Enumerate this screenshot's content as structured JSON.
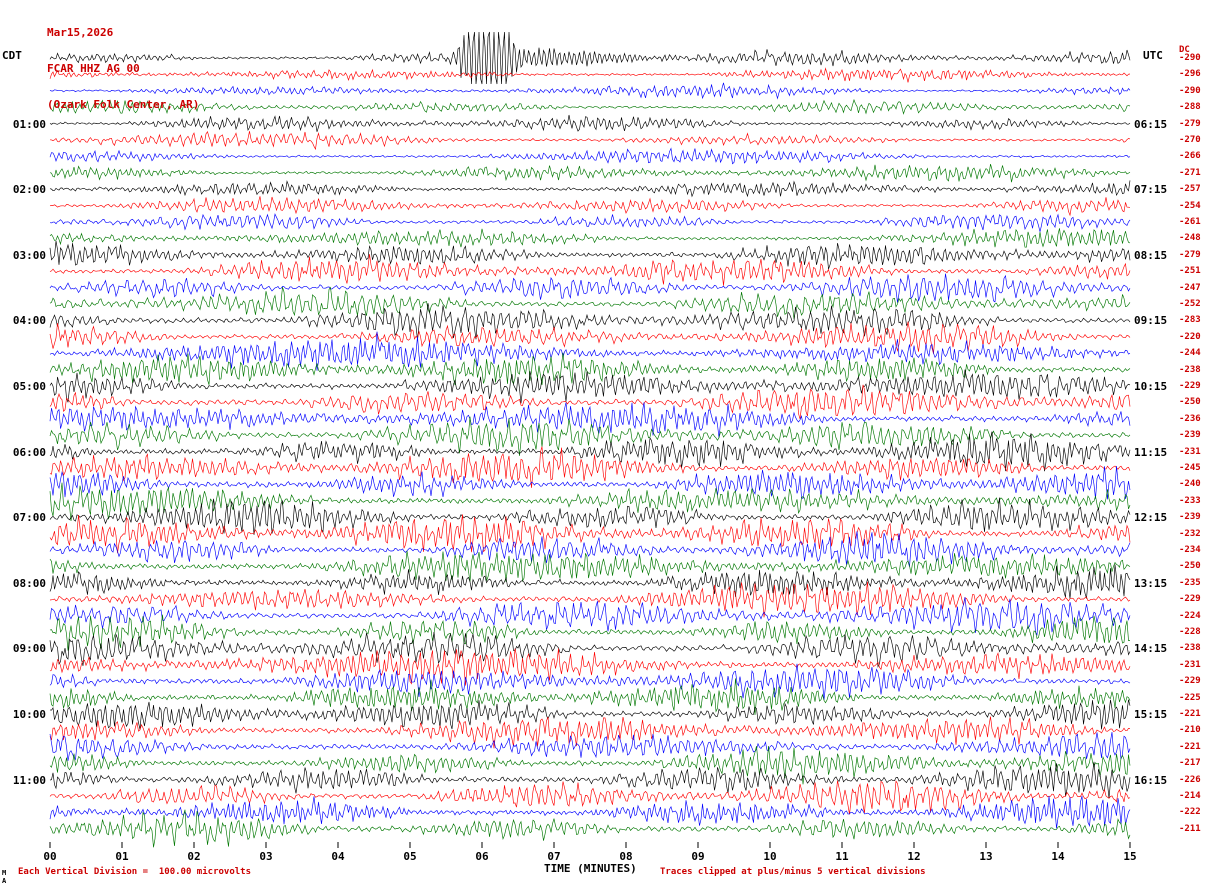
{
  "header": {
    "date": "Mar15,2026",
    "station": "FCAR HHZ AG 00",
    "location": "(Ozark Folk Center, AR)",
    "left_timezone": "CDT",
    "right_timezone": "UTC",
    "dc_label": "DC"
  },
  "x_axis": {
    "title": "TIME (MINUTES)",
    "ticks": [
      "00",
      "01",
      "02",
      "03",
      "04",
      "05",
      "06",
      "07",
      "08",
      "09",
      "10",
      "11",
      "12",
      "13",
      "14",
      "15"
    ]
  },
  "footer": {
    "left": "Each Vertical Division =  100.00 microvolts",
    "right": "Traces clipped at plus/minus 5 vertical divisions",
    "corner": "M\nA"
  },
  "colors": {
    "black": "#000000",
    "red": "#ff0000",
    "blue": "#0000ff",
    "green": "#007700",
    "title_text": "#cc0000",
    "dc_text": "#cc0000",
    "axis_text": "#000000"
  },
  "chart_data": {
    "type": "seismogram",
    "x_range_minutes": [
      0,
      15
    ],
    "minutes_per_row": 15,
    "vertical_division_microvolts": 100.0,
    "clip_divisions": 5,
    "row_color_cycle": [
      "black",
      "red",
      "blue",
      "green"
    ],
    "rows": [
      {
        "cdt": "",
        "utc": "",
        "color": "black",
        "dc": -290,
        "amp": 0.38,
        "event": {
          "minute": 6.05,
          "relative_amplitude": 3.2
        }
      },
      {
        "cdt": "",
        "utc": "",
        "color": "red",
        "dc": -296,
        "amp": 0.36
      },
      {
        "cdt": "",
        "utc": "",
        "color": "blue",
        "dc": -290,
        "amp": 0.33
      },
      {
        "cdt": "",
        "utc": "",
        "color": "green",
        "dc": -288,
        "amp": 0.38
      },
      {
        "cdt": "01:00",
        "utc": "06:15",
        "color": "black",
        "dc": -279,
        "amp": 0.42
      },
      {
        "cdt": "",
        "utc": "",
        "color": "red",
        "dc": -270,
        "amp": 0.4
      },
      {
        "cdt": "",
        "utc": "",
        "color": "blue",
        "dc": -266,
        "amp": 0.38
      },
      {
        "cdt": "",
        "utc": "",
        "color": "green",
        "dc": -271,
        "amp": 0.45
      },
      {
        "cdt": "02:00",
        "utc": "07:15",
        "color": "black",
        "dc": -257,
        "amp": 0.5
      },
      {
        "cdt": "",
        "utc": "",
        "color": "red",
        "dc": -254,
        "amp": 0.46
      },
      {
        "cdt": "",
        "utc": "",
        "color": "blue",
        "dc": -261,
        "amp": 0.52
      },
      {
        "cdt": "",
        "utc": "",
        "color": "green",
        "dc": -248,
        "amp": 0.56
      },
      {
        "cdt": "03:00",
        "utc": "08:15",
        "color": "black",
        "dc": -279,
        "amp": 0.75
      },
      {
        "cdt": "",
        "utc": "",
        "color": "red",
        "dc": -251,
        "amp": 0.7
      },
      {
        "cdt": "",
        "utc": "",
        "color": "blue",
        "dc": -247,
        "amp": 0.74
      },
      {
        "cdt": "",
        "utc": "",
        "color": "green",
        "dc": -252,
        "amp": 0.78
      },
      {
        "cdt": "04:00",
        "utc": "09:15",
        "color": "black",
        "dc": -283,
        "amp": 0.85
      },
      {
        "cdt": "",
        "utc": "",
        "color": "red",
        "dc": -220,
        "amp": 0.76
      },
      {
        "cdt": "",
        "utc": "",
        "color": "blue",
        "dc": -244,
        "amp": 0.82
      },
      {
        "cdt": "",
        "utc": "",
        "color": "green",
        "dc": -238,
        "amp": 0.8
      },
      {
        "cdt": "05:00",
        "utc": "10:15",
        "color": "black",
        "dc": -229,
        "amp": 0.88
      },
      {
        "cdt": "",
        "utc": "",
        "color": "red",
        "dc": -250,
        "amp": 0.92
      },
      {
        "cdt": "",
        "utc": "",
        "color": "blue",
        "dc": -236,
        "amp": 0.86
      },
      {
        "cdt": "",
        "utc": "",
        "color": "green",
        "dc": -239,
        "amp": 0.88
      },
      {
        "cdt": "06:00",
        "utc": "11:15",
        "color": "black",
        "dc": -231,
        "amp": 0.9
      },
      {
        "cdt": "",
        "utc": "",
        "color": "red",
        "dc": -245,
        "amp": 0.94
      },
      {
        "cdt": "",
        "utc": "",
        "color": "blue",
        "dc": -240,
        "amp": 0.9
      },
      {
        "cdt": "",
        "utc": "",
        "color": "green",
        "dc": -233,
        "amp": 0.88
      },
      {
        "cdt": "07:00",
        "utc": "12:15",
        "color": "black",
        "dc": -239,
        "amp": 0.92
      },
      {
        "cdt": "",
        "utc": "",
        "color": "red",
        "dc": -232,
        "amp": 0.9
      },
      {
        "cdt": "",
        "utc": "",
        "color": "blue",
        "dc": -234,
        "amp": 0.9
      },
      {
        "cdt": "",
        "utc": "",
        "color": "green",
        "dc": -250,
        "amp": 0.94
      },
      {
        "cdt": "08:00",
        "utc": "13:15",
        "color": "black",
        "dc": -235,
        "amp": 0.9
      },
      {
        "cdt": "",
        "utc": "",
        "color": "red",
        "dc": -229,
        "amp": 0.88
      },
      {
        "cdt": "",
        "utc": "",
        "color": "blue",
        "dc": -224,
        "amp": 0.86
      },
      {
        "cdt": "",
        "utc": "",
        "color": "green",
        "dc": -228,
        "amp": 0.88
      },
      {
        "cdt": "09:00",
        "utc": "14:15",
        "color": "black",
        "dc": -238,
        "amp": 0.92
      },
      {
        "cdt": "",
        "utc": "",
        "color": "red",
        "dc": -231,
        "amp": 0.9
      },
      {
        "cdt": "",
        "utc": "",
        "color": "blue",
        "dc": -229,
        "amp": 0.88
      },
      {
        "cdt": "",
        "utc": "",
        "color": "green",
        "dc": -225,
        "amp": 0.86
      },
      {
        "cdt": "10:00",
        "utc": "15:15",
        "color": "black",
        "dc": -221,
        "amp": 0.86
      },
      {
        "cdt": "",
        "utc": "",
        "color": "red",
        "dc": -210,
        "amp": 0.82
      },
      {
        "cdt": "",
        "utc": "",
        "color": "blue",
        "dc": -221,
        "amp": 0.85
      },
      {
        "cdt": "",
        "utc": "",
        "color": "green",
        "dc": -217,
        "amp": 0.82
      },
      {
        "cdt": "11:00",
        "utc": "16:15",
        "color": "black",
        "dc": -226,
        "amp": 0.88
      },
      {
        "cdt": "",
        "utc": "",
        "color": "red",
        "dc": -214,
        "amp": 0.82
      },
      {
        "cdt": "",
        "utc": "",
        "color": "blue",
        "dc": -222,
        "amp": 0.85
      },
      {
        "cdt": "",
        "utc": "",
        "color": "green",
        "dc": -211,
        "amp": 0.85
      }
    ]
  }
}
